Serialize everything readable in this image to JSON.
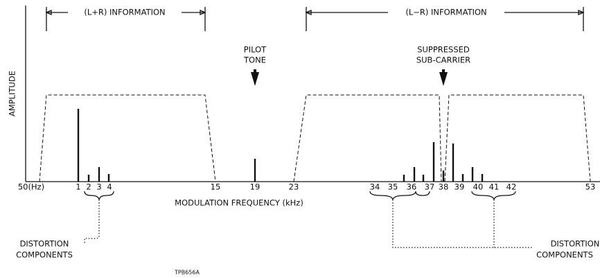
{
  "labels": {
    "lr_sum": "(L+R) INFORMATION",
    "lr_diff": "(L−R) INFORMATION",
    "pilot": [
      "PILOT",
      "TONE"
    ],
    "carrier": [
      "SUPPRESSED",
      "SUB-CARRIER"
    ],
    "y_axis": "AMPLITUDE",
    "x_axis": "MODULATION FREQUENCY (kHz)",
    "distortion_left": [
      "DISTORTION",
      "COMPONENTS"
    ],
    "distortion_right": [
      "DISTORTION",
      "COMPONENTS"
    ],
    "figure_id": "TPB656A"
  },
  "ticks": [
    "50(Hz)",
    "1",
    "2",
    "3",
    "4",
    "15",
    "19",
    "23",
    "34",
    "35",
    "36",
    "37",
    "38",
    "39",
    "40",
    "41",
    "42",
    "53"
  ]
}
